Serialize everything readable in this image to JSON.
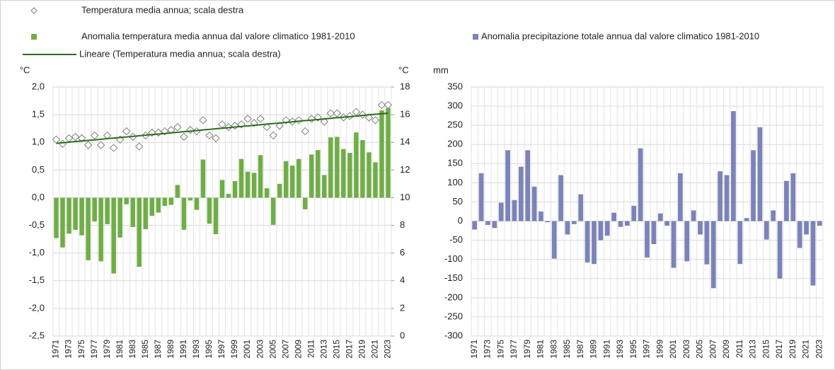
{
  "chart_data": [
    {
      "type": "bar",
      "ylabel": "°C",
      "y2label": "°C",
      "categories": [
        "1971",
        null,
        "1973",
        null,
        "1975",
        null,
        "1977",
        null,
        "1979",
        null,
        "1981",
        null,
        "1983",
        null,
        "1985",
        null,
        "1987",
        null,
        "1989",
        null,
        "1991",
        null,
        "1993",
        null,
        "1995",
        null,
        "1997",
        null,
        "1999",
        null,
        "2001",
        null,
        "2003",
        null,
        "2005",
        null,
        "2007",
        null,
        "2009",
        null,
        "2011",
        null,
        "2013",
        null,
        "2015",
        null,
        "2017",
        null,
        "2019",
        null,
        "2021",
        null,
        "2023"
      ],
      "series": [
        {
          "name": "Temperatura media annua; scala destra",
          "type": "scatter",
          "axis": "y2",
          "color": "#7f7f7f",
          "values": [
            14.2,
            13.9,
            14.3,
            14.4,
            14.3,
            13.8,
            14.5,
            13.8,
            14.5,
            13.6,
            14.2,
            14.8,
            14.4,
            13.7,
            14.5,
            14.7,
            14.7,
            14.8,
            14.9,
            15.1,
            14.4,
            14.9,
            14.8,
            15.6,
            14.5,
            14.3,
            15.3,
            15.1,
            15.2,
            15.3,
            15.7,
            15.4,
            15.7,
            15.1,
            14.5,
            15.2,
            15.6,
            15.5,
            15.6,
            14.8,
            15.7,
            15.8,
            15.5,
            16.1,
            16.1,
            15.8,
            15.9,
            16.2,
            16.0,
            15.8,
            15.6,
            16.7,
            16.7
          ]
        },
        {
          "name": "Anomalia temperatura media annua dal valore climatico 1981-2010",
          "type": "bar",
          "color": "#70ad47",
          "values": [
            -0.73,
            -0.9,
            -0.65,
            -0.58,
            -0.68,
            -1.13,
            -0.43,
            -1.15,
            -0.48,
            -1.37,
            -0.72,
            -0.12,
            -0.53,
            -1.25,
            -0.57,
            -0.33,
            -0.27,
            -0.15,
            -0.13,
            0.23,
            -0.58,
            -0.05,
            -0.22,
            0.69,
            -0.47,
            -0.66,
            0.32,
            0.07,
            0.3,
            0.7,
            0.47,
            0.45,
            0.77,
            0.17,
            -0.49,
            0.25,
            0.66,
            0.58,
            0.7,
            -0.21,
            0.78,
            0.86,
            0.41,
            1.09,
            1.1,
            0.88,
            0.81,
            1.18,
            1.04,
            0.82,
            0.64,
            1.58,
            1.62
          ]
        },
        {
          "name": "Lineare (Temperatura media annua; scala destra)",
          "type": "line",
          "axis": "y2",
          "color": "#2e6b1f",
          "values": [
            13.93,
            13.97,
            14.01,
            14.06,
            14.1,
            14.14,
            14.18,
            14.22,
            14.27,
            14.31,
            14.35,
            14.39,
            14.43,
            14.48,
            14.52,
            14.56,
            14.6,
            14.64,
            14.69,
            14.73,
            14.77,
            14.81,
            14.85,
            14.9,
            14.94,
            14.98,
            15.02,
            15.06,
            15.11,
            15.15,
            15.19,
            15.23,
            15.27,
            15.32,
            15.36,
            15.4,
            15.44,
            15.48,
            15.53,
            15.57,
            15.61,
            15.65,
            15.69,
            15.74,
            15.78,
            15.82,
            15.86,
            15.9,
            15.95,
            15.99,
            16.03,
            16.07,
            16.11
          ]
        }
      ],
      "ylim": [
        -2.5,
        2.0
      ],
      "yticks": [
        {
          "value": -2.5,
          "label": "-2,5"
        },
        {
          "value": -2,
          "label": "-2,0"
        },
        {
          "value": -1.5,
          "label": "-1,5"
        },
        {
          "value": -1,
          "label": "-1,0"
        },
        {
          "value": -0.5,
          "label": "-0,5"
        },
        {
          "value": 0,
          "label": "0,0"
        },
        {
          "value": 0.5,
          "label": "0,5"
        },
        {
          "value": 1,
          "label": "1,0"
        },
        {
          "value": 1.5,
          "label": "1,5"
        },
        {
          "value": 2,
          "label": "2,0"
        }
      ],
      "y2lim": [
        0,
        18
      ],
      "y2ticks": [
        0,
        2,
        4,
        6,
        8,
        10,
        12,
        14,
        16,
        18
      ],
      "grid": true
    },
    {
      "type": "bar",
      "ylabel": "mm",
      "categories": [
        "1971",
        null,
        "1973",
        null,
        "1975",
        null,
        "1977",
        null,
        "1979",
        null,
        "1981",
        null,
        "1983",
        null,
        "1985",
        null,
        "1987",
        null,
        "1989",
        null,
        "1991",
        null,
        "1993",
        null,
        "1995",
        null,
        "1997",
        null,
        "1999",
        null,
        "2001",
        null,
        "2003",
        null,
        "2005",
        null,
        "2007",
        null,
        "2009",
        null,
        "2011",
        null,
        "2013",
        null,
        "2015",
        null,
        "2017",
        null,
        "2019",
        null,
        "2021",
        null,
        "2023"
      ],
      "series": [
        {
          "name": "Anomalia precipitazione totale annua dal valore climatico 1981-2010",
          "type": "bar",
          "color": "#7b83b8",
          "values": [
            -22,
            125,
            -10,
            -18,
            48,
            185,
            55,
            142,
            185,
            90,
            25,
            -3,
            -98,
            120,
            -35,
            -8,
            70,
            -108,
            -112,
            -50,
            -38,
            22,
            -15,
            -12,
            40,
            190,
            -95,
            -60,
            20,
            -12,
            -122,
            125,
            -105,
            28,
            -35,
            -113,
            -175,
            130,
            120,
            287,
            -112,
            8,
            185,
            245,
            -48,
            28,
            -150,
            105,
            125,
            -70,
            -35,
            -168,
            -12
          ]
        }
      ],
      "ylim": [
        -300,
        350
      ],
      "yticks": [
        -300,
        -250,
        -200,
        -150,
        -100,
        -50,
        0,
        50,
        100,
        150,
        200,
        250,
        300,
        350
      ],
      "grid": true
    }
  ]
}
